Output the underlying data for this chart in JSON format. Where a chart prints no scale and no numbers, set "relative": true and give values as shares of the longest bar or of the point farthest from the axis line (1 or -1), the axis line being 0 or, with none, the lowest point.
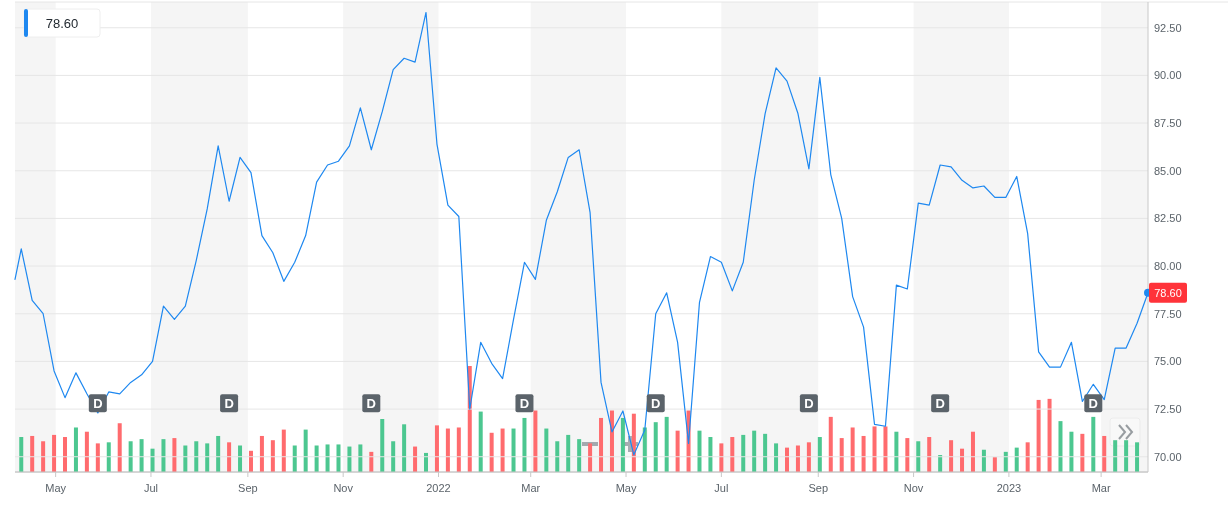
{
  "chart_data": [
    {
      "type": "line",
      "xlim": [
        "2021-04-05",
        "2023-03-31"
      ],
      "ylim": [
        69.2,
        93.85
      ],
      "x": [
        "2021-04-05",
        "2021-04-09",
        "2021-04-16",
        "2021-04-23",
        "2021-04-30",
        "2021-05-07",
        "2021-05-14",
        "2021-05-21",
        "2021-05-28",
        "2021-06-04",
        "2021-06-11",
        "2021-06-18",
        "2021-06-25",
        "2021-07-02",
        "2021-07-09",
        "2021-07-16",
        "2021-07-23",
        "2021-07-30",
        "2021-08-06",
        "2021-08-13",
        "2021-08-20",
        "2021-08-27",
        "2021-09-03",
        "2021-09-10",
        "2021-09-17",
        "2021-09-24",
        "2021-10-01",
        "2021-10-08",
        "2021-10-15",
        "2021-10-22",
        "2021-10-29",
        "2021-11-05",
        "2021-11-12",
        "2021-11-19",
        "2021-11-26",
        "2021-12-03",
        "2021-12-10",
        "2021-12-17",
        "2021-12-24",
        "2021-12-31",
        "2022-01-07",
        "2022-01-14",
        "2022-01-21",
        "2022-01-28",
        "2022-02-04",
        "2022-02-11",
        "2022-02-18",
        "2022-02-25",
        "2022-03-04",
        "2022-03-11",
        "2022-03-18",
        "2022-03-25",
        "2022-04-01",
        "2022-04-08",
        "2022-04-15",
        "2022-04-22",
        "2022-04-29",
        "2022-05-06",
        "2022-05-13",
        "2022-05-20",
        "2022-05-27",
        "2022-06-03",
        "2022-06-10",
        "2022-06-17",
        "2022-06-24",
        "2022-07-01",
        "2022-07-08",
        "2022-07-15",
        "2022-07-22",
        "2022-07-29",
        "2022-08-05",
        "2022-08-12",
        "2022-08-19",
        "2022-08-26",
        "2022-09-02",
        "2022-09-09",
        "2022-09-16",
        "2022-09-23",
        "2022-09-30",
        "2022-10-07",
        "2022-10-14",
        "2022-10-21",
        "2022-10-28",
        "2022-11-04",
        "2022-11-11",
        "2022-11-18",
        "2022-11-25",
        "2022-12-02",
        "2022-12-09",
        "2022-12-16",
        "2022-12-23",
        "2022-12-30",
        "2023-01-06",
        "2023-01-13",
        "2023-01-20",
        "2023-01-27",
        "2023-02-03",
        "2023-02-10",
        "2023-02-17",
        "2023-02-24",
        "2023-03-03",
        "2023-03-10",
        "2023-03-17",
        "2023-03-24",
        "2023-03-31"
      ],
      "series": [
        {
          "color": "#1e88f0",
          "values": [
            79.3,
            80.9,
            78.2,
            77.5,
            74.5,
            73.1,
            74.4,
            73.3,
            72.3,
            73.4,
            73.3,
            73.9,
            74.3,
            75.0,
            77.9,
            77.2,
            77.9,
            80.3,
            83.0,
            86.3,
            83.4,
            85.7,
            84.9,
            81.6,
            80.7,
            79.2,
            80.2,
            81.6,
            84.4,
            85.3,
            85.5,
            86.3,
            88.3,
            86.1,
            88.1,
            90.3,
            90.9,
            90.7,
            93.3,
            86.4,
            83.2,
            82.6,
            72.5,
            76.0,
            74.9,
            74.1,
            77.2,
            80.2,
            79.3,
            82.4,
            83.9,
            85.7,
            86.1,
            82.8,
            73.9,
            71.3,
            72.4,
            70.1,
            71.4,
            77.5,
            78.6,
            76.0,
            70.7,
            78.1,
            80.5,
            80.2,
            78.7,
            80.2,
            84.5,
            88.0,
            90.4,
            89.7,
            88.0,
            85.1,
            89.9,
            84.8,
            82.5,
            78.4,
            76.8,
            71.7,
            71.6,
            79.0,
            78.8,
            83.3,
            83.2,
            85.3,
            85.2,
            84.5,
            84.1,
            84.2,
            83.6,
            83.6,
            84.7,
            81.7,
            75.5,
            74.7,
            74.7,
            76.0,
            72.9,
            73.8,
            73.0,
            75.7,
            75.7,
            77.0,
            78.6
          ]
        }
      ],
      "yticks": [
        {
          "value": 70,
          "label": "70.00"
        },
        {
          "value": 72.5,
          "label": "72.50"
        },
        {
          "value": 75,
          "label": "75.00"
        },
        {
          "value": 77.5,
          "label": "77.50"
        },
        {
          "value": 80,
          "label": "80.00"
        },
        {
          "value": 82.5,
          "label": "82.50"
        },
        {
          "value": 85,
          "label": "85.00"
        },
        {
          "value": 87.5,
          "label": "87.50"
        },
        {
          "value": 90,
          "label": "90.00"
        },
        {
          "value": 92.5,
          "label": "92.50"
        }
      ],
      "xticks": [
        {
          "value": "2021-05-01",
          "label": "May"
        },
        {
          "value": "2021-07-01",
          "label": "Jul"
        },
        {
          "value": "2021-09-01",
          "label": "Sep"
        },
        {
          "value": "2021-11-01",
          "label": "Nov"
        },
        {
          "value": "2022-01-01",
          "label": "2022"
        },
        {
          "value": "2022-03-01",
          "label": "Mar"
        },
        {
          "value": "2022-05-01",
          "label": "May"
        },
        {
          "value": "2022-07-01",
          "label": "Jul"
        },
        {
          "value": "2022-09-01",
          "label": "Sep"
        },
        {
          "value": "2022-11-01",
          "label": "Nov"
        },
        {
          "value": "2023-01-01",
          "label": "2023"
        },
        {
          "value": "2023-03-01",
          "label": "Mar"
        }
      ],
      "grid": "y",
      "marker": "none",
      "line_style": "solid",
      "bands": [
        {
          "axis": "x",
          "from": "2021-04-05",
          "to": "2021-05-01",
          "color": "#f5f5f5"
        },
        {
          "axis": "x",
          "from": "2021-07-01",
          "to": "2021-09-01",
          "color": "#f5f5f5"
        },
        {
          "axis": "x",
          "from": "2021-11-01",
          "to": "2022-01-01",
          "color": "#f5f5f5"
        },
        {
          "axis": "x",
          "from": "2022-03-01",
          "to": "2022-05-01",
          "color": "#f5f5f5"
        },
        {
          "axis": "x",
          "from": "2022-07-01",
          "to": "2022-09-01",
          "color": "#f5f5f5"
        },
        {
          "axis": "x",
          "from": "2022-11-01",
          "to": "2023-01-01",
          "color": "#f5f5f5"
        },
        {
          "axis": "x",
          "from": "2023-03-01",
          "to": "2023-03-31",
          "color": "#f5f5f5"
        }
      ],
      "annotations": [
        "78.60",
        {
          "text": "D",
          "x": "2021-05-28",
          "y": 72.8
        },
        {
          "text": "D",
          "x": "2021-08-20",
          "y": 72.8
        },
        {
          "text": "D",
          "x": "2021-11-19",
          "y": 72.8
        },
        {
          "text": "D",
          "x": "2022-02-25",
          "y": 72.8
        },
        {
          "text": "D",
          "x": "2022-05-20",
          "y": 72.8
        },
        {
          "text": "D",
          "x": "2022-08-26",
          "y": 72.8
        },
        {
          "text": "D",
          "x": "2022-11-18",
          "y": 72.8
        },
        {
          "text": "D",
          "x": "2023-02-24",
          "y": 72.8
        },
        {
          "text": "78.60",
          "x": "2023-03-31",
          "y": 78.6
        }
      ]
    },
    {
      "type": "bar",
      "relative": true,
      "xlim": [
        "2021-04-05",
        "2023-03-31"
      ],
      "x": [
        "2021-04-09",
        "2021-04-16",
        "2021-04-23",
        "2021-04-30",
        "2021-05-07",
        "2021-05-14",
        "2021-05-21",
        "2021-05-28",
        "2021-06-04",
        "2021-06-11",
        "2021-06-18",
        "2021-06-25",
        "2021-07-02",
        "2021-07-09",
        "2021-07-16",
        "2021-07-23",
        "2021-07-30",
        "2021-08-06",
        "2021-08-13",
        "2021-08-20",
        "2021-08-27",
        "2021-09-03",
        "2021-09-10",
        "2021-09-17",
        "2021-09-24",
        "2021-10-01",
        "2021-10-08",
        "2021-10-15",
        "2021-10-22",
        "2021-10-29",
        "2021-11-05",
        "2021-11-12",
        "2021-11-19",
        "2021-11-26",
        "2021-12-03",
        "2021-12-10",
        "2021-12-17",
        "2021-12-24",
        "2021-12-31",
        "2022-01-07",
        "2022-01-14",
        "2022-01-21",
        "2022-01-28",
        "2022-02-04",
        "2022-02-11",
        "2022-02-18",
        "2022-02-25",
        "2022-03-04",
        "2022-03-11",
        "2022-03-18",
        "2022-03-25",
        "2022-04-01",
        "2022-04-08",
        "2022-04-15",
        "2022-04-22",
        "2022-04-29",
        "2022-05-06",
        "2022-05-13",
        "2022-05-20",
        "2022-05-27",
        "2022-06-03",
        "2022-06-10",
        "2022-06-17",
        "2022-06-24",
        "2022-07-01",
        "2022-07-08",
        "2022-07-15",
        "2022-07-22",
        "2022-07-29",
        "2022-08-05",
        "2022-08-12",
        "2022-08-19",
        "2022-08-26",
        "2022-09-02",
        "2022-09-09",
        "2022-09-16",
        "2022-09-23",
        "2022-09-30",
        "2022-10-07",
        "2022-10-14",
        "2022-10-21",
        "2022-10-28",
        "2022-11-04",
        "2022-11-11",
        "2022-11-18",
        "2022-11-25",
        "2022-12-02",
        "2022-12-09",
        "2022-12-16",
        "2022-12-23",
        "2022-12-30",
        "2023-01-06",
        "2023-01-13",
        "2023-01-20",
        "2023-01-27",
        "2023-02-03",
        "2023-02-10",
        "2023-02-17",
        "2023-02-24",
        "2023-03-03",
        "2023-03-10",
        "2023-03-17",
        "2023-03-24"
      ],
      "values": [
        0.33,
        0.34,
        0.29,
        0.35,
        0.33,
        0.42,
        0.38,
        0.27,
        0.28,
        0.46,
        0.29,
        0.31,
        0.22,
        0.31,
        0.32,
        0.25,
        0.29,
        0.27,
        0.34,
        0.28,
        0.25,
        0.2,
        0.34,
        0.3,
        0.4,
        0.25,
        0.4,
        0.25,
        0.26,
        0.26,
        0.24,
        0.26,
        0.19,
        0.5,
        0.29,
        0.45,
        0.24,
        0.18,
        0.44,
        0.41,
        0.42,
        1,
        0.57,
        0.37,
        0.41,
        0.41,
        0.51,
        0.58,
        0.41,
        0.29,
        0.35,
        0.31,
        0.27,
        0.51,
        0.58,
        0.51,
        0.55,
        0.42,
        0.47,
        0.52,
        0.39,
        0.58,
        0.39,
        0.33,
        0.27,
        0.33,
        0.35,
        0.39,
        0.36,
        0.27,
        0.23,
        0.25,
        0.28,
        0.33,
        0.52,
        0.32,
        0.42,
        0.34,
        0.43,
        0.43,
        0.38,
        0.32,
        0.29,
        0.33,
        0.16,
        0.3,
        0.22,
        0.38,
        0.21,
        0.14,
        0.19,
        0.23,
        0.28,
        0.68,
        0.69,
        0.48,
        0.38,
        0.36,
        0.52,
        0.34,
        0.3,
        0.3,
        0.28
      ],
      "colors": [
        "#4cc790",
        "#ff6b6e",
        "#ff6b6e",
        "#ff6b6e",
        "#ff6b6e",
        "#4cc790",
        "#ff6b6e",
        "#ff6b6e",
        "#4cc790",
        "#ff6b6e",
        "#4cc790",
        "#4cc790",
        "#4cc790",
        "#4cc790",
        "#ff6b6e",
        "#4cc790",
        "#4cc790",
        "#4cc790",
        "#4cc790",
        "#ff6b6e",
        "#4cc790",
        "#ff6b6e",
        "#ff6b6e",
        "#ff6b6e",
        "#ff6b6e",
        "#4cc790",
        "#4cc790",
        "#4cc790",
        "#4cc790",
        "#4cc790",
        "#4cc790",
        "#4cc790",
        "#ff6b6e",
        "#4cc790",
        "#4cc790",
        "#4cc790",
        "#ff6b6e",
        "#4cc790",
        "#ff6b6e",
        "#ff6b6e",
        "#ff6b6e",
        "#ff6b6e",
        "#4cc790",
        "#ff6b6e",
        "#ff6b6e",
        "#4cc790",
        "#4cc790",
        "#ff6b6e",
        "#4cc790",
        "#4cc790",
        "#4cc790",
        "#4cc790",
        "#ff6b6e",
        "#ff6b6e",
        "#ff6b6e",
        "#4cc790",
        "#ff6b6e",
        "#4cc790",
        "#4cc790",
        "#4cc790",
        "#ff6b6e",
        "#ff6b6e",
        "#4cc790",
        "#4cc790",
        "#ff6b6e",
        "#ff6b6e",
        "#4cc790",
        "#4cc790",
        "#4cc790",
        "#4cc790",
        "#ff6b6e",
        "#ff6b6e",
        "#ff6b6e",
        "#4cc790",
        "#ff6b6e",
        "#ff6b6e",
        "#ff6b6e",
        "#ff6b6e",
        "#ff6b6e",
        "#ff6b6e",
        "#4cc790",
        "#ff6b6e",
        "#4cc790",
        "#ff6b6e",
        "#4cc790",
        "#ff6b6e",
        "#ff6b6e",
        "#ff6b6e",
        "#4cc790",
        "#ff6b6e",
        "#4cc790",
        "#4cc790",
        "#ff6b6e",
        "#ff6b6e",
        "#ff6b6e",
        "#4cc790",
        "#4cc790",
        "#ff6b6e",
        "#4cc790",
        "#ff6b6e",
        "#4cc790",
        "#4cc790",
        "#4cc790"
      ]
    }
  ]
}
